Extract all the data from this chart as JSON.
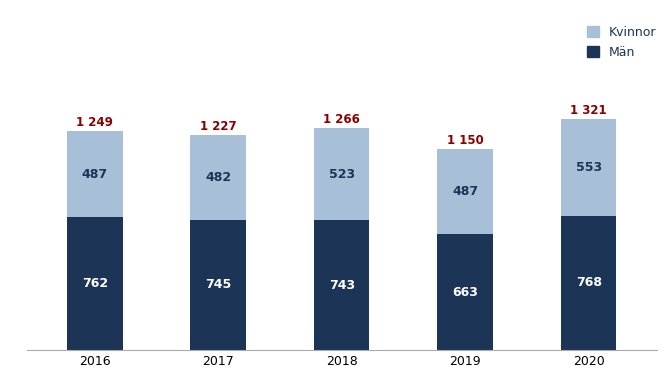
{
  "years": [
    "2016",
    "2017",
    "2018",
    "2019",
    "2020"
  ],
  "man_values": [
    762,
    745,
    743,
    663,
    768
  ],
  "kvinnor_values": [
    487,
    482,
    523,
    487,
    553
  ],
  "totals": [
    1249,
    1227,
    1266,
    1150,
    1321
  ],
  "man_color": "#1c3557",
  "kvinnor_color": "#a8bfd8",
  "legend_kvinnor": "Kvinnor",
  "legend_man": "Män",
  "bar_width": 0.45,
  "figsize": [
    6.7,
    3.89
  ],
  "dpi": 100,
  "background_color": "#ffffff",
  "man_label_color": "#ffffff",
  "kvinnor_label_color": "#1c3557",
  "total_label_color": "#8b0000",
  "total_label_fontsize": 8.5,
  "bar_label_fontsize": 9,
  "tick_fontsize": 9,
  "legend_fontsize": 9,
  "ylim_max": 1600
}
